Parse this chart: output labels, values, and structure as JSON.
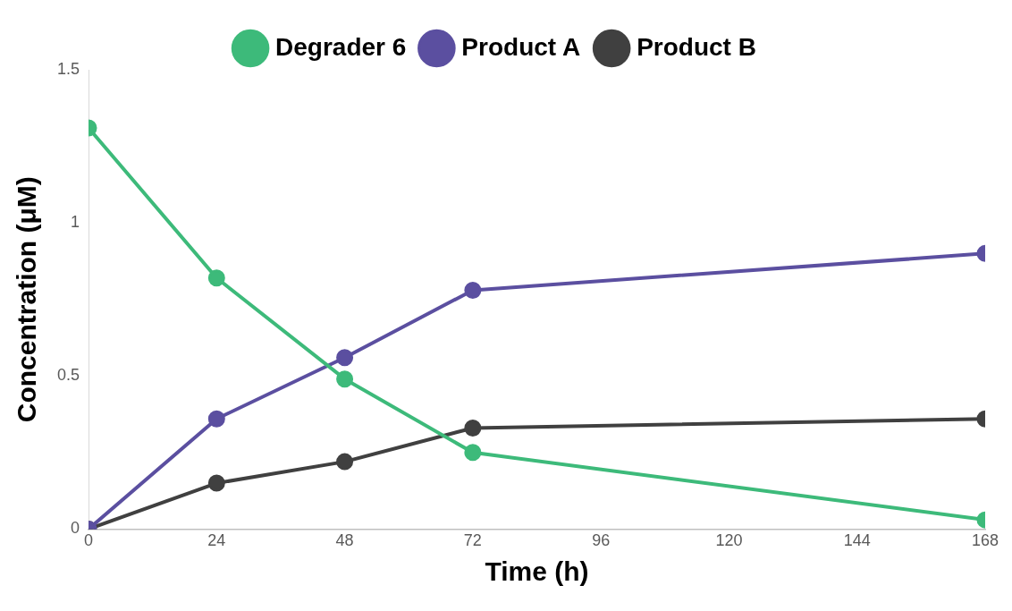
{
  "chart_data": {
    "type": "line",
    "xlabel": "Time (h)",
    "ylabel": "Concentration (μM)",
    "x": [
      0,
      24,
      48,
      72,
      168
    ],
    "series": [
      {
        "name": "Degrader 6",
        "color": "#3dba7a",
        "values": [
          1.31,
          0.82,
          0.49,
          0.25,
          0.03
        ]
      },
      {
        "name": "Product A",
        "color": "#5b4fa0",
        "values": [
          0,
          0.36,
          0.56,
          0.78,
          0.9
        ]
      },
      {
        "name": "Product B",
        "color": "#404040",
        "values": [
          0,
          0.15,
          0.22,
          0.33,
          0.36
        ]
      }
    ],
    "xlim": [
      0,
      168
    ],
    "xticks": [
      0,
      24,
      48,
      72,
      96,
      120,
      144,
      168
    ],
    "ylim": [
      0,
      1.5
    ],
    "yticks": [
      0,
      0.5,
      1,
      1.5
    ],
    "grid": false,
    "legend": "top",
    "marker": "circle",
    "line_style": "solid"
  }
}
